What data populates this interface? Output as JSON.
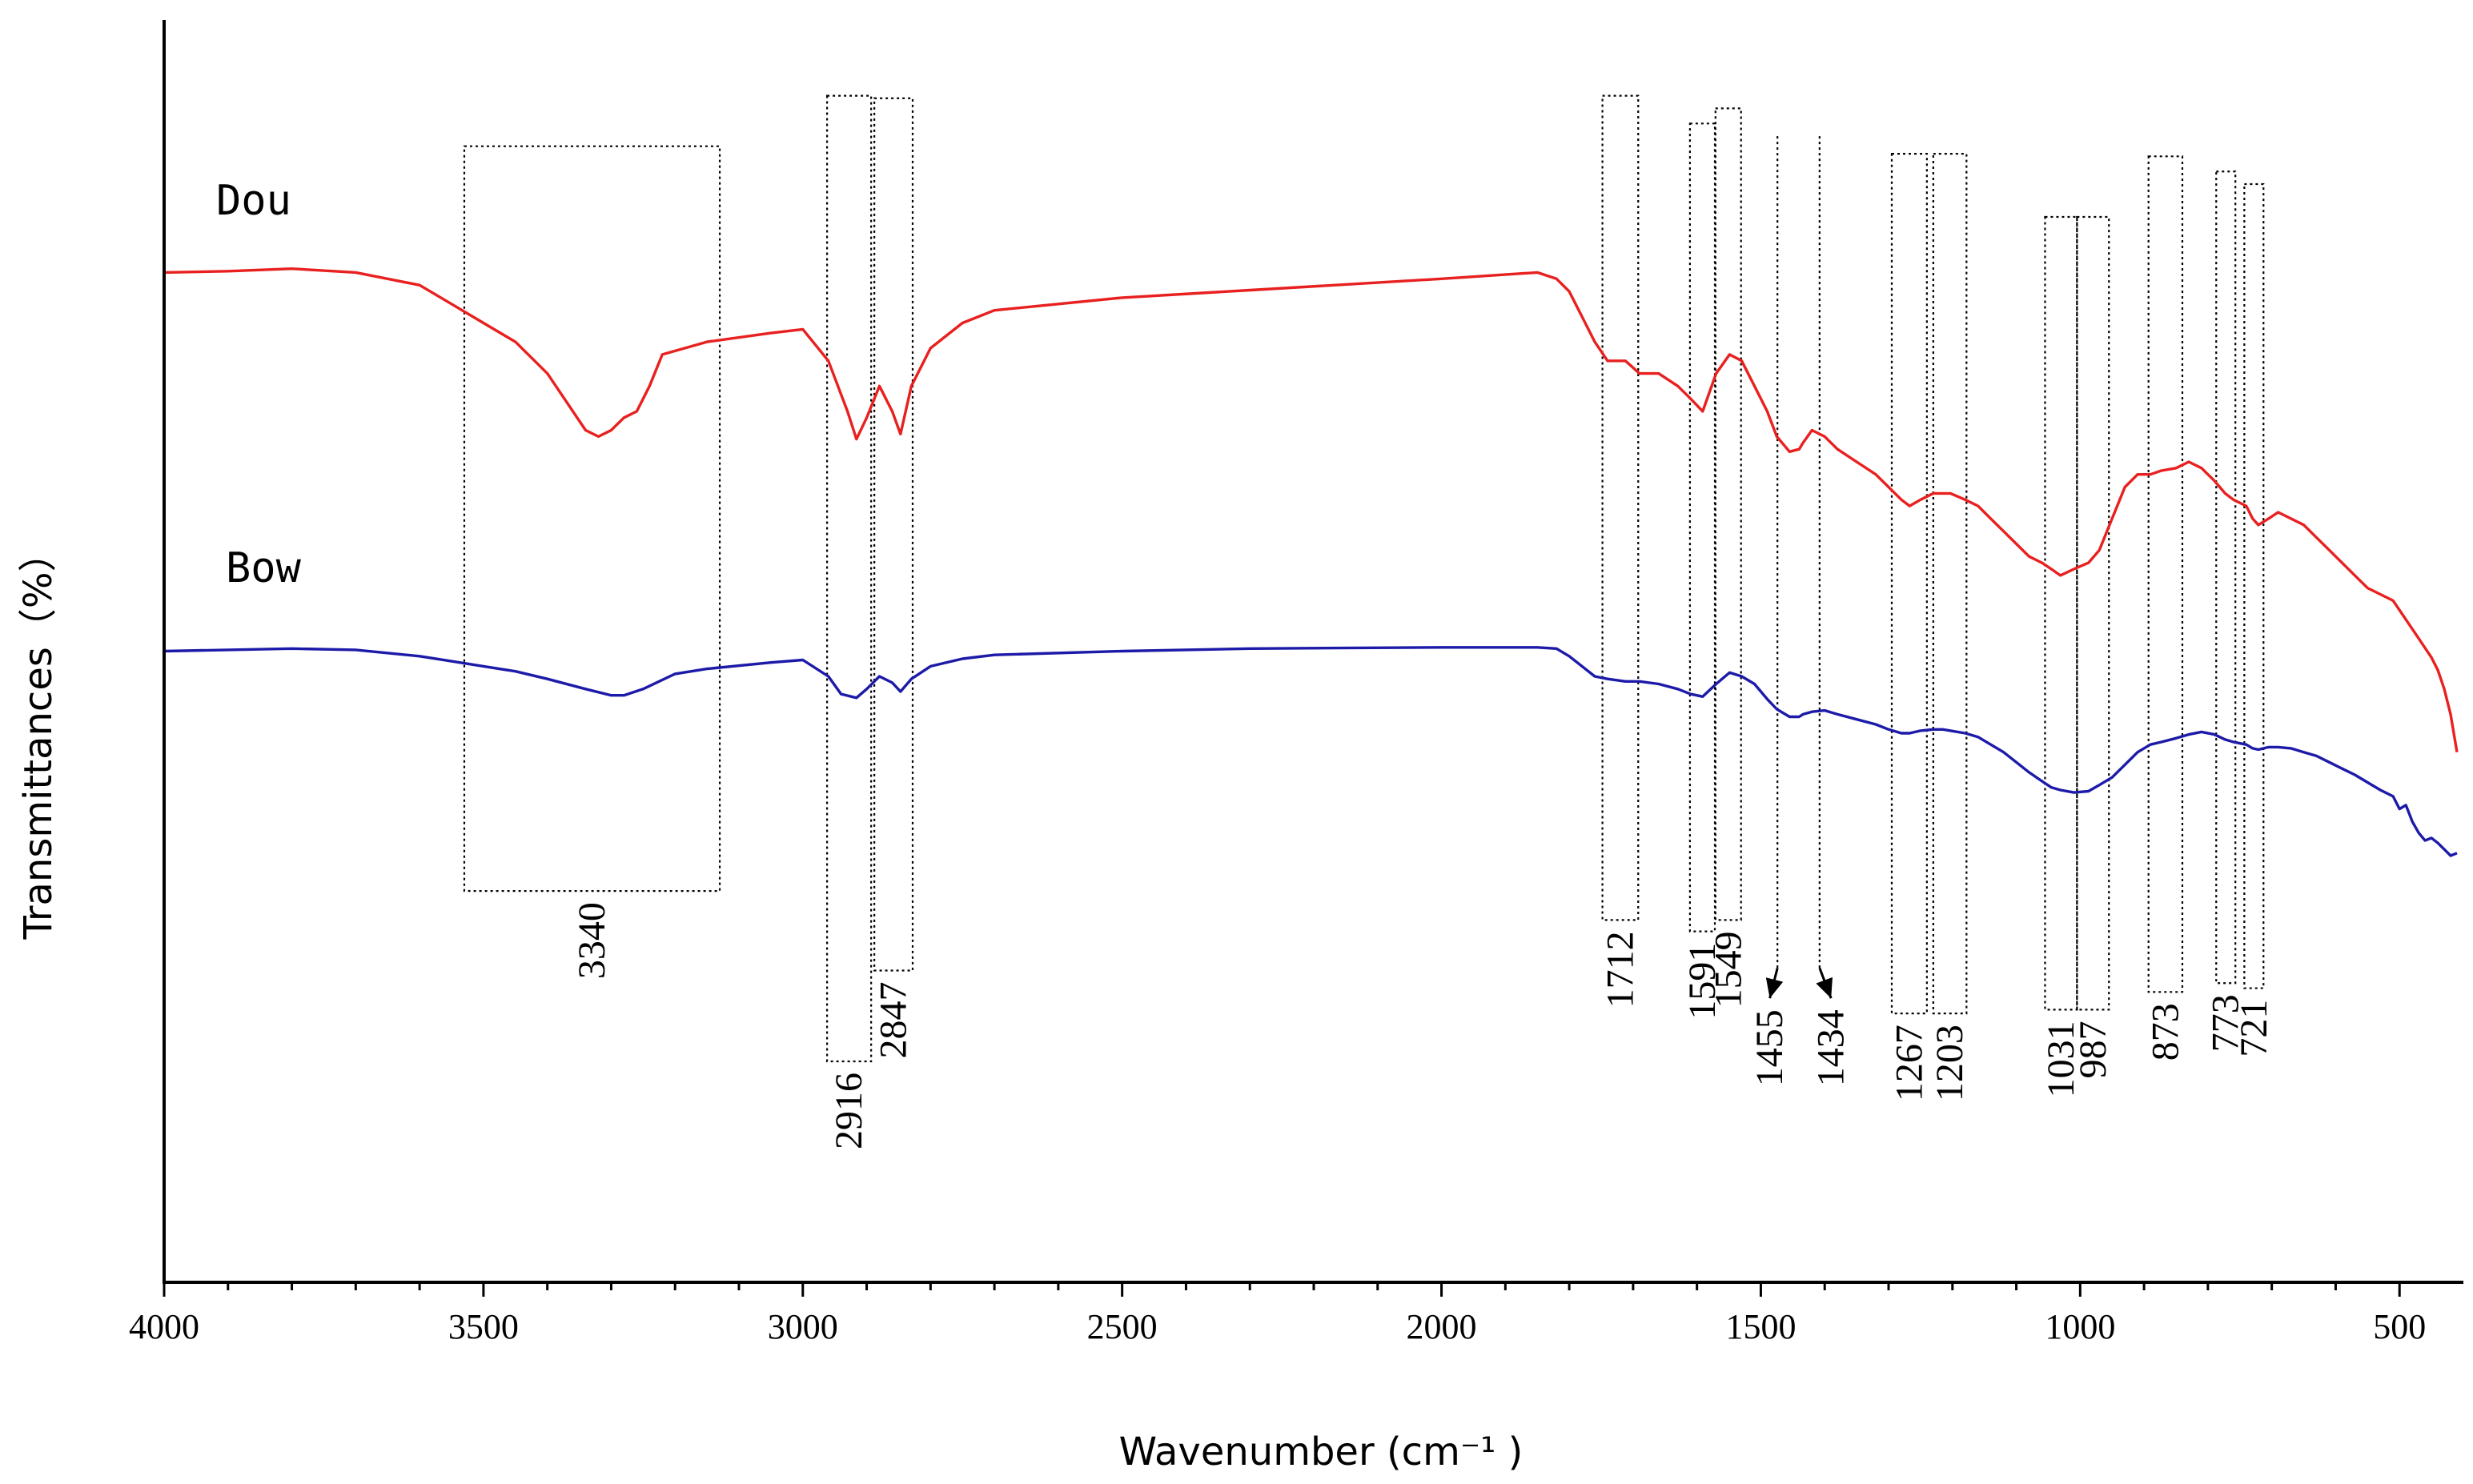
{
  "chart_data": {
    "type": "line",
    "title": "",
    "xlabel": "Wavenumber (cm⁻¹ )",
    "ylabel": "Transmittances（%）",
    "xlim": [
      4000,
      400
    ],
    "x_ticks": [
      "4000",
      "3500",
      "3000",
      "2500",
      "2000",
      "1500",
      "1000",
      "500"
    ],
    "ylim": [
      0,
      100
    ],
    "grid": false,
    "colors": {
      "Dou": "#e8201f",
      "Bow": "#1c1aa8",
      "axis": "#000000",
      "annotation": "#000000"
    },
    "series": [
      {
        "name": "Dou",
        "label": "Dou",
        "x": [
          4000,
          3900,
          3800,
          3700,
          3600,
          3550,
          3500,
          3450,
          3400,
          3360,
          3340,
          3320,
          3300,
          3280,
          3260,
          3240,
          3220,
          3150,
          3050,
          3000,
          2960,
          2930,
          2916,
          2900,
          2880,
          2860,
          2847,
          2830,
          2800,
          2750,
          2700,
          2500,
          2300,
          2000,
          1850,
          1820,
          1800,
          1780,
          1760,
          1740,
          1712,
          1690,
          1660,
          1630,
          1610,
          1591,
          1570,
          1549,
          1530,
          1510,
          1490,
          1475,
          1455,
          1440,
          1434,
          1420,
          1400,
          1380,
          1350,
          1320,
          1300,
          1280,
          1267,
          1250,
          1230,
          1215,
          1203,
          1180,
          1160,
          1140,
          1120,
          1100,
          1080,
          1060,
          1045,
          1031,
          1010,
          987,
          970,
          950,
          930,
          910,
          890,
          873,
          850,
          830,
          810,
          790,
          773,
          760,
          740,
          730,
          721,
          705,
          690,
          670,
          650,
          630,
          610,
          590,
          570,
          550,
          530,
          510,
          490,
          470,
          450,
          440,
          430,
          420,
          410
        ],
        "y": [
          80.0,
          80.1,
          80.3,
          80.0,
          79.0,
          77.5,
          76.0,
          74.5,
          72.0,
          69.0,
          67.5,
          67.0,
          67.5,
          68.5,
          69.0,
          71.0,
          73.5,
          74.5,
          75.2,
          75.5,
          73.0,
          69.0,
          66.8,
          68.5,
          71.0,
          69.0,
          67.2,
          71.0,
          74.0,
          76.0,
          77.0,
          78.0,
          78.6,
          79.5,
          80.0,
          79.5,
          78.5,
          76.5,
          74.5,
          73.0,
          73.0,
          72.0,
          72.0,
          71.0,
          70.0,
          69.0,
          72.0,
          73.5,
          73.0,
          71.0,
          69.0,
          67.0,
          65.8,
          66.0,
          66.5,
          67.5,
          67.0,
          66.0,
          65.0,
          64.0,
          63.0,
          62.0,
          61.5,
          62.0,
          62.5,
          62.5,
          62.5,
          62.0,
          61.5,
          60.5,
          59.5,
          58.5,
          57.5,
          57.0,
          56.5,
          56.0,
          56.5,
          57.0,
          58.0,
          60.5,
          63.0,
          64.0,
          64.0,
          64.3,
          64.5,
          65.0,
          64.5,
          63.5,
          62.5,
          62.0,
          61.5,
          60.5,
          60.0,
          60.5,
          61.0,
          60.5,
          60.0,
          59.0,
          58.0,
          57.0,
          56.0,
          55.0,
          54.5,
          54.0,
          52.5,
          51.0,
          49.5,
          48.5,
          47.0,
          45.0,
          42.0
        ]
      },
      {
        "name": "Bow",
        "label": "Bow",
        "x": [
          4000,
          3900,
          3800,
          3700,
          3600,
          3550,
          3500,
          3450,
          3400,
          3340,
          3300,
          3280,
          3250,
          3200,
          3150,
          3050,
          3000,
          2960,
          2940,
          2916,
          2900,
          2880,
          2860,
          2847,
          2830,
          2800,
          2750,
          2700,
          2500,
          2300,
          2000,
          1850,
          1820,
          1800,
          1780,
          1760,
          1740,
          1712,
          1690,
          1660,
          1630,
          1610,
          1591,
          1570,
          1549,
          1530,
          1510,
          1490,
          1475,
          1455,
          1440,
          1434,
          1420,
          1400,
          1380,
          1350,
          1320,
          1300,
          1280,
          1267,
          1250,
          1230,
          1215,
          1203,
          1180,
          1160,
          1140,
          1120,
          1100,
          1080,
          1060,
          1045,
          1031,
          1010,
          987,
          970,
          950,
          930,
          910,
          890,
          873,
          850,
          830,
          810,
          790,
          773,
          760,
          740,
          730,
          721,
          705,
          690,
          670,
          650,
          630,
          610,
          590,
          570,
          550,
          530,
          510,
          500,
          490,
          480,
          470,
          460,
          450,
          440,
          430,
          420,
          410
        ],
        "y": [
          50.0,
          50.1,
          50.2,
          50.1,
          49.6,
          49.2,
          48.8,
          48.4,
          47.8,
          47.0,
          46.5,
          46.5,
          47.0,
          48.2,
          48.6,
          49.1,
          49.3,
          48.0,
          46.6,
          46.3,
          47.0,
          48.0,
          47.5,
          46.8,
          47.8,
          48.8,
          49.4,
          49.7,
          50.0,
          50.2,
          50.3,
          50.3,
          50.2,
          49.6,
          48.8,
          48.0,
          47.8,
          47.6,
          47.6,
          47.4,
          47.0,
          46.6,
          46.4,
          47.4,
          48.3,
          48.0,
          47.4,
          46.2,
          45.4,
          44.8,
          44.8,
          45.0,
          45.2,
          45.3,
          45.0,
          44.6,
          44.2,
          43.8,
          43.5,
          43.5,
          43.7,
          43.8,
          43.8,
          43.7,
          43.5,
          43.2,
          42.6,
          42.0,
          41.2,
          40.4,
          39.7,
          39.2,
          39.0,
          38.8,
          38.9,
          39.4,
          40.0,
          41.0,
          42.0,
          42.6,
          42.8,
          43.1,
          43.4,
          43.6,
          43.4,
          43.0,
          42.8,
          42.6,
          42.3,
          42.2,
          42.4,
          42.4,
          42.3,
          42.0,
          41.7,
          41.2,
          40.7,
          40.2,
          39.6,
          39.0,
          38.5,
          37.5,
          37.8,
          36.5,
          35.6,
          35.0,
          35.2,
          34.8,
          34.3,
          33.8,
          34.0
        ]
      }
    ],
    "annotations": [
      {
        "label": "3340",
        "x_from": 3530,
        "x_to": 3130,
        "y_top": 90.0,
        "y_bottom": 31.0
      },
      {
        "label": "2916",
        "x_from": 2962,
        "x_to": 2893,
        "y_top": 94.0,
        "y_bottom": 17.5
      },
      {
        "label": "2847",
        "x_from": 2888,
        "x_to": 2828,
        "y_top": 93.8,
        "y_bottom": 24.7
      },
      {
        "label": "1712",
        "x_from": 1748,
        "x_to": 1692,
        "y_top": 94.0,
        "y_bottom": 28.7
      },
      {
        "label": "1591",
        "x_from": 1611,
        "x_to": 1572,
        "y_top": 91.8,
        "y_bottom": 27.8
      },
      {
        "label": "1549",
        "x_from": 1571,
        "x_to": 1531,
        "y_top": 93.0,
        "y_bottom": 28.7
      },
      {
        "label": "1455",
        "x_from": 1474,
        "x_to": 1474,
        "y_top": 90.8,
        "y_bottom": 24.9,
        "arrow_to_x": 1486,
        "arrow_to_y": 22.5
      },
      {
        "label": "1434",
        "x_from": 1408,
        "x_to": 1408,
        "y_top": 90.8,
        "y_bottom": 24.9,
        "arrow_to_x": 1390,
        "arrow_to_y": 22.5
      },
      {
        "label": "1267",
        "x_from": 1295,
        "x_to": 1240,
        "y_top": 89.4,
        "y_bottom": 21.3
      },
      {
        "label": "1203",
        "x_from": 1230,
        "x_to": 1178,
        "y_top": 89.4,
        "y_bottom": 21.3
      },
      {
        "label": "1031",
        "x_from": 1055,
        "x_to": 1005,
        "y_top": 84.4,
        "y_bottom": 21.6
      },
      {
        "label": "987",
        "x_from": 1005,
        "x_to": 955,
        "y_top": 84.4,
        "y_bottom": 21.6
      },
      {
        "label": "873",
        "x_from": 893,
        "x_to": 840,
        "y_top": 89.2,
        "y_bottom": 23.0
      },
      {
        "label": "773",
        "x_from": 787,
        "x_to": 757,
        "y_top": 88.0,
        "y_bottom": 23.7
      },
      {
        "label": "721",
        "x_from": 743,
        "x_to": 713,
        "y_top": 87.0,
        "y_bottom": 23.3
      }
    ]
  }
}
